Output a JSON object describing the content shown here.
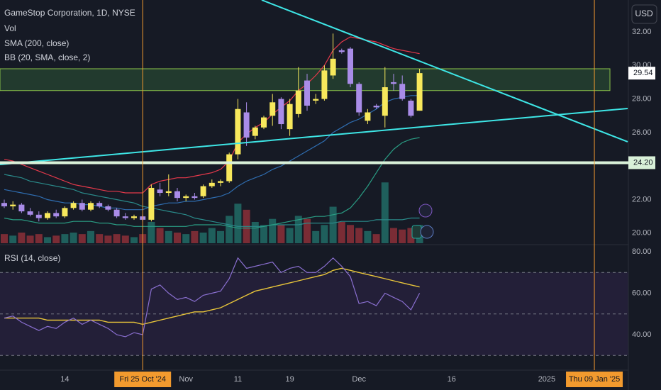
{
  "chart_data": {
    "type": "candlestick",
    "title": "GameStop Corporation, 1D, NYSE",
    "currency": "USD",
    "categories": [
      null,
      null,
      null,
      null,
      null,
      null,
      null,
      "14",
      null,
      null,
      null,
      null,
      null,
      null,
      null,
      null,
      "Fri 25 Oct '24",
      null,
      null,
      null,
      null,
      "Nov",
      null,
      null,
      null,
      null,
      null,
      "11",
      null,
      null,
      null,
      null,
      null,
      "19",
      null,
      null,
      null,
      null,
      null,
      null,
      null,
      "Dec",
      null,
      null,
      null,
      null,
      null,
      null,
      null
    ],
    "future_labels": [
      "16",
      "2025",
      "Thu 09 Jan '25"
    ],
    "candles": {
      "open": [
        21.8,
        21.6,
        21.7,
        21.3,
        21.1,
        20.9,
        21.2,
        21.0,
        21.5,
        21.8,
        21.4,
        21.8,
        21.6,
        21.4,
        21.0,
        20.9,
        21.0,
        20.8,
        22.6,
        22.4,
        22.5,
        22.1,
        22.2,
        22.2,
        22.8,
        23.0,
        23.1,
        24.7,
        27.2,
        25.8,
        26.3,
        27.0,
        28.0,
        26.2,
        27.1,
        29.1,
        27.9,
        28.0,
        29.4,
        30.9,
        31.0,
        28.9,
        26.7,
        27.6,
        27.0,
        29.0,
        28.9,
        27.9,
        27.3
      ],
      "high": [
        22.0,
        21.9,
        21.8,
        21.5,
        21.3,
        21.3,
        21.4,
        21.6,
        21.9,
        22.0,
        21.9,
        21.9,
        21.7,
        21.5,
        21.2,
        21.1,
        21.1,
        22.9,
        23.0,
        23.5,
        22.7,
        22.3,
        22.4,
        22.9,
        23.2,
        23.2,
        24.8,
        28.0,
        27.8,
        26.4,
        27.0,
        28.3,
        28.1,
        28.0,
        29.9,
        29.5,
        28.3,
        30.0,
        31.9,
        31.0,
        31.1,
        29.0,
        27.4,
        27.7,
        29.9,
        29.5,
        29.4,
        28.0,
        29.8
      ],
      "low": [
        21.5,
        21.4,
        21.2,
        21.0,
        20.7,
        20.8,
        20.9,
        20.9,
        21.4,
        21.3,
        21.3,
        21.5,
        21.3,
        20.9,
        20.8,
        20.8,
        20.7,
        20.7,
        22.2,
        22.2,
        21.9,
        21.9,
        22.0,
        22.1,
        22.7,
        22.8,
        23.0,
        24.4,
        25.2,
        25.6,
        26.2,
        26.4,
        26.2,
        25.8,
        26.9,
        27.3,
        27.7,
        27.9,
        29.2,
        30.7,
        28.7,
        27.0,
        26.5,
        27.4,
        26.3,
        28.5,
        27.9,
        26.9,
        27.3
      ],
      "close": [
        21.6,
        21.7,
        21.3,
        21.1,
        20.9,
        21.2,
        21.0,
        21.5,
        21.8,
        21.4,
        21.8,
        21.6,
        21.4,
        21.0,
        20.9,
        21.0,
        20.8,
        22.7,
        22.4,
        22.5,
        22.1,
        22.2,
        22.1,
        22.8,
        23.0,
        23.1,
        24.7,
        27.4,
        25.7,
        26.3,
        26.9,
        27.8,
        26.5,
        27.7,
        28.5,
        27.6,
        28.0,
        29.7,
        30.4,
        30.8,
        28.9,
        27.2,
        27.2,
        27.5,
        28.7,
        28.9,
        28.0,
        27.0,
        29.54
      ],
      "up_color": "#f7e85c",
      "down_color": "#a98ce8"
    },
    "volume": {
      "title": "Vol",
      "values": [
        6,
        5,
        7,
        5,
        6,
        4,
        5,
        6,
        7,
        6,
        8,
        6,
        5,
        6,
        5,
        4,
        6,
        14,
        10,
        8,
        7,
        6,
        8,
        7,
        10,
        8,
        18,
        26,
        22,
        14,
        12,
        16,
        12,
        10,
        18,
        16,
        8,
        12,
        24,
        14,
        12,
        10,
        8,
        6,
        40,
        10,
        9,
        10,
        12
      ],
      "vlim": [
        0,
        160
      ],
      "up_color": "#1f5f5c",
      "down_color": "#7a2c35"
    },
    "sma": {
      "title": "SMA (200, close)",
      "color": "#2a8a8a",
      "values": [
        23.5,
        23.4,
        23.3,
        23.1,
        23.0,
        22.9,
        22.8,
        22.7,
        22.6,
        22.4,
        22.3,
        22.2,
        22.1,
        22.0,
        21.9,
        21.8,
        21.6,
        21.5,
        21.4,
        21.3,
        21.2,
        21.1,
        20.9,
        20.8,
        20.7,
        20.6,
        20.5,
        20.4,
        20.4,
        20.4,
        20.4,
        20.5,
        20.5,
        20.5,
        20.5,
        20.6,
        20.6,
        20.6,
        20.6,
        20.7,
        20.7,
        20.7,
        20.7,
        20.8,
        20.8,
        20.8,
        20.8,
        20.9,
        20.9
      ]
    },
    "bb": {
      "title": "BB (20, SMA, close, 2)",
      "upper": [
        24.4,
        24.3,
        24.1,
        23.9,
        23.7,
        23.5,
        23.3,
        23.1,
        22.9,
        22.8,
        22.7,
        22.6,
        22.5,
        22.5,
        22.4,
        22.4,
        22.4,
        22.9,
        23.1,
        23.2,
        23.3,
        23.3,
        23.4,
        23.5,
        23.6,
        23.8,
        24.3,
        25.4,
        25.9,
        26.3,
        26.6,
        27.1,
        27.5,
        27.9,
        28.5,
        28.9,
        29.4,
        30.0,
        30.9,
        31.4,
        31.7,
        31.6,
        31.5,
        31.4,
        31.2,
        31.0,
        30.9,
        30.8,
        30.7
      ],
      "basis": [
        22.6,
        22.5,
        22.4,
        22.3,
        22.2,
        22.0,
        21.9,
        21.8,
        21.8,
        21.7,
        21.7,
        21.6,
        21.5,
        21.5,
        21.4,
        21.4,
        21.4,
        21.6,
        21.7,
        21.8,
        21.8,
        21.9,
        21.9,
        22.0,
        22.1,
        22.2,
        22.4,
        22.8,
        23.1,
        23.3,
        23.5,
        23.8,
        24.0,
        24.3,
        24.6,
        24.9,
        25.2,
        25.5,
        26.0,
        26.3,
        26.6,
        26.8,
        27.1,
        27.4,
        27.8,
        28.0,
        28.1,
        28.2,
        28.2
      ],
      "lower": [
        20.9,
        20.8,
        20.8,
        20.7,
        20.6,
        20.6,
        20.6,
        20.6,
        20.7,
        20.7,
        20.7,
        20.6,
        20.6,
        20.5,
        20.5,
        20.4,
        20.4,
        20.4,
        20.4,
        20.4,
        20.4,
        20.4,
        20.5,
        20.5,
        20.5,
        20.5,
        20.4,
        20.3,
        20.3,
        20.3,
        20.4,
        20.5,
        20.6,
        20.7,
        20.8,
        20.9,
        21.0,
        21.0,
        21.1,
        21.2,
        21.5,
        22.1,
        22.8,
        23.6,
        24.4,
        25.0,
        25.4,
        25.6,
        25.7
      ],
      "upper_color": "#e5394b",
      "basis_color": "#2f6db0",
      "lower_color": "#2a9d84"
    },
    "ylim": [
      19.4,
      33.9
    ],
    "yticks": [
      {
        "value": 20,
        "label": "20.00"
      },
      {
        "value": 22,
        "label": "22.00"
      },
      {
        "value": 26,
        "label": "26.00"
      },
      {
        "value": 28,
        "label": "28.00"
      },
      {
        "value": 30,
        "label": "30.00"
      },
      {
        "value": 32,
        "label": "32.00"
      }
    ],
    "last_price": {
      "value": 29.54,
      "label": "29.54"
    },
    "level_line": {
      "value": 24.2,
      "label": "24.20"
    },
    "zone": [
      28.5,
      29.8
    ],
    "trendlines": [
      {
        "from": [
          29.75,
          33.9
        ],
        "to": [
          72.05,
          25.45
        ]
      },
      {
        "from": [
          -0.49,
          24.09
        ],
        "to": [
          72.05,
          27.43
        ]
      }
    ],
    "rsi": {
      "title": "RSI (14, close)",
      "color": "#8a6fd0",
      "ma_color": "#e8c53a",
      "values": [
        48,
        49,
        46,
        44,
        42,
        44,
        43,
        46,
        48,
        45,
        47,
        45,
        43,
        40,
        39,
        41,
        40,
        62,
        64,
        60,
        57,
        58,
        56,
        59,
        60,
        61,
        67,
        77,
        72,
        73,
        74,
        75,
        70,
        72,
        73,
        70,
        70,
        73,
        77,
        73,
        68,
        55,
        56,
        54,
        60,
        58,
        56,
        52,
        60
      ],
      "ma": [
        48,
        48,
        48,
        48,
        48,
        47,
        47,
        47,
        47,
        47,
        47,
        47,
        46,
        46,
        46,
        46,
        45,
        46,
        47,
        48,
        49,
        50,
        51,
        51,
        52,
        53,
        55,
        57,
        59,
        61,
        62,
        63,
        64,
        65,
        66,
        67,
        68,
        69,
        71,
        72,
        71,
        70,
        69,
        68,
        67,
        66,
        65,
        64,
        63
      ],
      "levels": [
        30,
        50,
        70
      ],
      "ylim": [
        22.9,
        82.4
      ],
      "yticks": [
        {
          "value": 40,
          "label": "40.00"
        },
        {
          "value": 60,
          "label": "60.00"
        },
        {
          "value": 80,
          "label": "80.00"
        }
      ]
    }
  }
}
